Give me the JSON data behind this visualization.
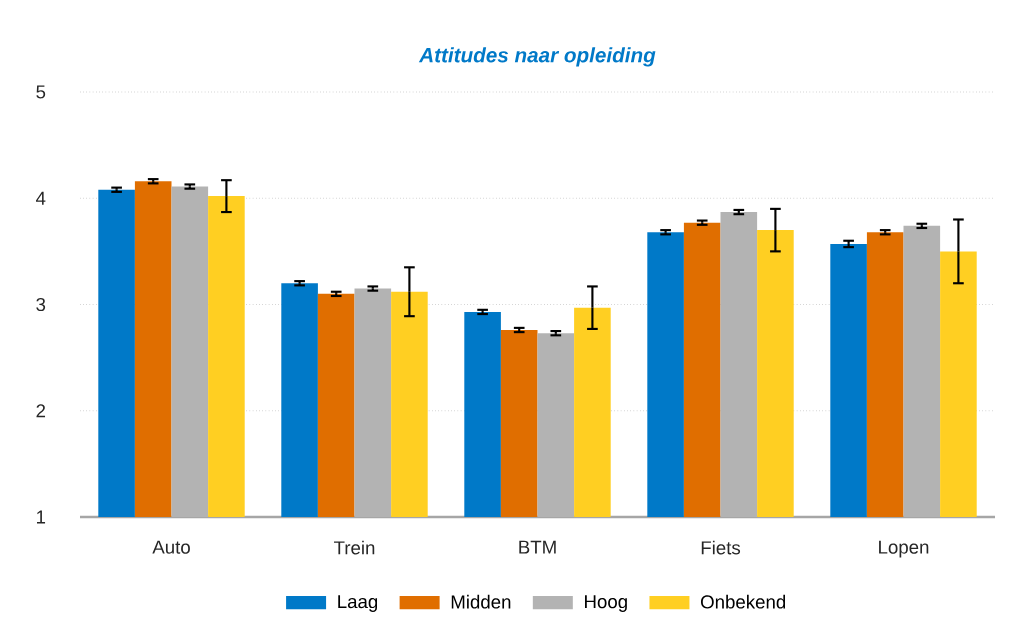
{
  "chart_data": {
    "type": "bar",
    "title": "Attitudes naar opleiding",
    "categories": [
      "Auto",
      "Trein",
      "BTM",
      "Fiets",
      "Lopen"
    ],
    "series": [
      {
        "name": "Laag",
        "color": "#0079c8",
        "values": [
          4.08,
          3.2,
          2.93,
          3.68,
          3.57
        ],
        "errors": [
          0.02,
          0.02,
          0.02,
          0.02,
          0.03
        ]
      },
      {
        "name": "Midden",
        "color": "#e06e00",
        "values": [
          4.16,
          3.1,
          2.76,
          3.77,
          3.68
        ],
        "errors": [
          0.02,
          0.02,
          0.02,
          0.02,
          0.02
        ]
      },
      {
        "name": "Hoog",
        "color": "#b3b3b3",
        "values": [
          4.11,
          3.15,
          2.73,
          3.87,
          3.74
        ],
        "errors": [
          0.02,
          0.02,
          0.02,
          0.02,
          0.02
        ]
      },
      {
        "name": "Onbekend",
        "color": "#ffcf22",
        "values": [
          4.02,
          3.12,
          2.97,
          3.7,
          3.5
        ],
        "errors": [
          0.15,
          0.23,
          0.2,
          0.2,
          0.3
        ]
      }
    ],
    "ylim": [
      1,
      5
    ],
    "yticks": [
      1,
      2,
      3,
      4,
      5
    ],
    "grid": "y",
    "legend": "bottom"
  }
}
